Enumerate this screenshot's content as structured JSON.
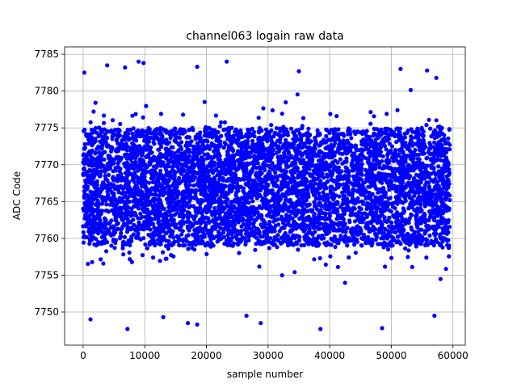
{
  "chart_data": {
    "type": "scatter",
    "title": "channel063 logain raw data",
    "xlabel": "sample number",
    "ylabel": "ADC Code",
    "xlim": [
      -3000,
      62000
    ],
    "ylim": [
      7745.5,
      7786
    ],
    "xticks": [
      0,
      10000,
      20000,
      30000,
      40000,
      50000,
      60000
    ],
    "yticks": [
      7750,
      7755,
      7760,
      7765,
      7770,
      7775,
      7780,
      7785
    ],
    "grid": true,
    "marker_color": "#0000ff",
    "series": [
      {
        "x_range": [
          0,
          59500
        ],
        "dense_band": [
          7757,
          7776
        ],
        "core_band": [
          7759,
          7775
        ],
        "outliers": [
          {
            "x": 200,
            "y": 7782.5
          },
          {
            "x": 3900,
            "y": 7783.5
          },
          {
            "x": 6800,
            "y": 7783.2
          },
          {
            "x": 9000,
            "y": 7784
          },
          {
            "x": 9800,
            "y": 7783.8
          },
          {
            "x": 18500,
            "y": 7783.3
          },
          {
            "x": 23300,
            "y": 7784
          },
          {
            "x": 35000,
            "y": 7782.7
          },
          {
            "x": 51500,
            "y": 7783
          },
          {
            "x": 55800,
            "y": 7782.8
          },
          {
            "x": 57300,
            "y": 7781.8
          },
          {
            "x": 1200,
            "y": 7749
          },
          {
            "x": 7200,
            "y": 7747.7
          },
          {
            "x": 17000,
            "y": 7748.5
          },
          {
            "x": 18500,
            "y": 7748.3
          },
          {
            "x": 28800,
            "y": 7748.5
          },
          {
            "x": 38500,
            "y": 7747.7
          },
          {
            "x": 48500,
            "y": 7747.8
          },
          {
            "x": 57000,
            "y": 7749.5
          },
          {
            "x": 13000,
            "y": 7749.3
          },
          {
            "x": 26500,
            "y": 7749.5
          }
        ]
      }
    ]
  }
}
